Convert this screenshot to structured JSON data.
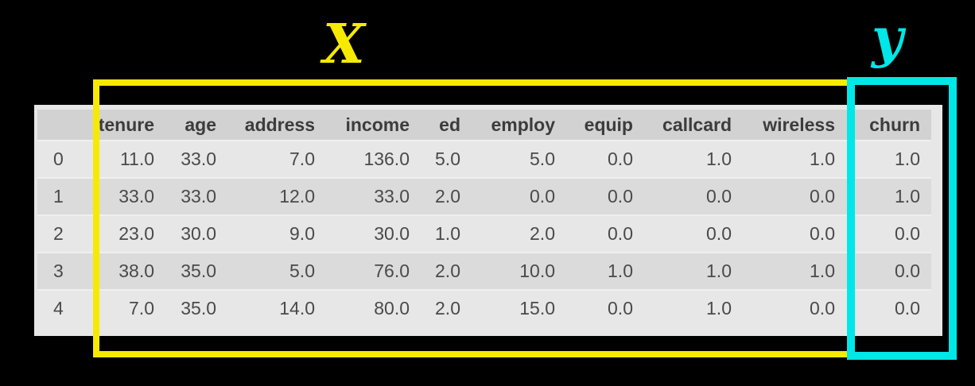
{
  "labels": {
    "x": "X",
    "y": "y"
  },
  "colors": {
    "background": "#000000",
    "x_accent": "#f5ea00",
    "y_accent": "#00e7e7",
    "table_bg": "#e7e7e7",
    "header_bg": "#d2d2d2",
    "stripe_bg": "#dbdbdb",
    "text": "#4a4a4a"
  },
  "chart_data": {
    "type": "table",
    "title": "",
    "columns": [
      "tenure",
      "age",
      "address",
      "income",
      "ed",
      "employ",
      "equip",
      "callcard",
      "wireless",
      "churn"
    ],
    "index": [
      "0",
      "1",
      "2",
      "3",
      "4"
    ],
    "rows": [
      [
        "11.0",
        "33.0",
        "7.0",
        "136.0",
        "5.0",
        "5.0",
        "0.0",
        "1.0",
        "1.0",
        "1.0"
      ],
      [
        "33.0",
        "33.0",
        "12.0",
        "33.0",
        "2.0",
        "0.0",
        "0.0",
        "0.0",
        "0.0",
        "1.0"
      ],
      [
        "23.0",
        "30.0",
        "9.0",
        "30.0",
        "1.0",
        "2.0",
        "0.0",
        "0.0",
        "0.0",
        "0.0"
      ],
      [
        "38.0",
        "35.0",
        "5.0",
        "76.0",
        "2.0",
        "10.0",
        "1.0",
        "1.0",
        "1.0",
        "0.0"
      ],
      [
        "7.0",
        "35.0",
        "14.0",
        "80.0",
        "2.0",
        "15.0",
        "0.0",
        "1.0",
        "0.0",
        "0.0"
      ]
    ],
    "annotations": [
      {
        "label": "X",
        "color": "#f5ea00",
        "columns": [
          "tenure",
          "age",
          "address",
          "income",
          "ed",
          "employ",
          "equip",
          "callcard",
          "wireless"
        ]
      },
      {
        "label": "y",
        "color": "#00e7e7",
        "columns": [
          "churn"
        ]
      }
    ],
    "layout_hints": {
      "striped_rows": true,
      "numbers_right_aligned": true,
      "index_column_blank_header": true
    }
  }
}
